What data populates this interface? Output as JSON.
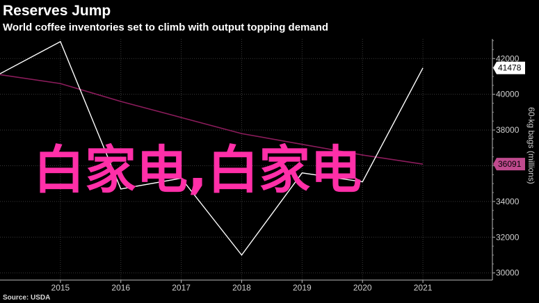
{
  "header": {
    "title": "Reserves Jump",
    "subtitle": "World coffee inventories set to climb with output topping demand"
  },
  "footer": {
    "source": "Source: USDA"
  },
  "watermark": "白家电,白家电",
  "colors": {
    "background": "#000000",
    "series_white": "#ffffff",
    "series_magenta": "#8c1c5c",
    "watermark": "#ff2fa8"
  },
  "chart_data": {
    "type": "line",
    "x": [
      2014,
      2015,
      2016,
      2017,
      2018,
      2019,
      2020,
      2021
    ],
    "x_ticks": [
      "2015",
      "2016",
      "2017",
      "2018",
      "2019",
      "2020",
      "2021"
    ],
    "y_ticks": [
      "42000",
      "40000",
      "38000",
      "36000",
      "34000",
      "32000",
      "30000"
    ],
    "ylabel": "60-kg bags (millions)",
    "ylim": [
      29600,
      43100
    ],
    "xlim": [
      2014,
      2022.15
    ],
    "series": [
      {
        "color": "#ffffff",
        "values": [
          41150,
          42950,
          34700,
          35300,
          31000,
          35600,
          35100,
          41478
        ]
      },
      {
        "color": "#8c1c5c",
        "values": [
          41100,
          40600,
          39600,
          38700,
          37800,
          37200,
          36600,
          36091
        ]
      }
    ],
    "callouts": [
      "41478",
      "36091"
    ],
    "grid": true,
    "y_axis_position": "right"
  }
}
